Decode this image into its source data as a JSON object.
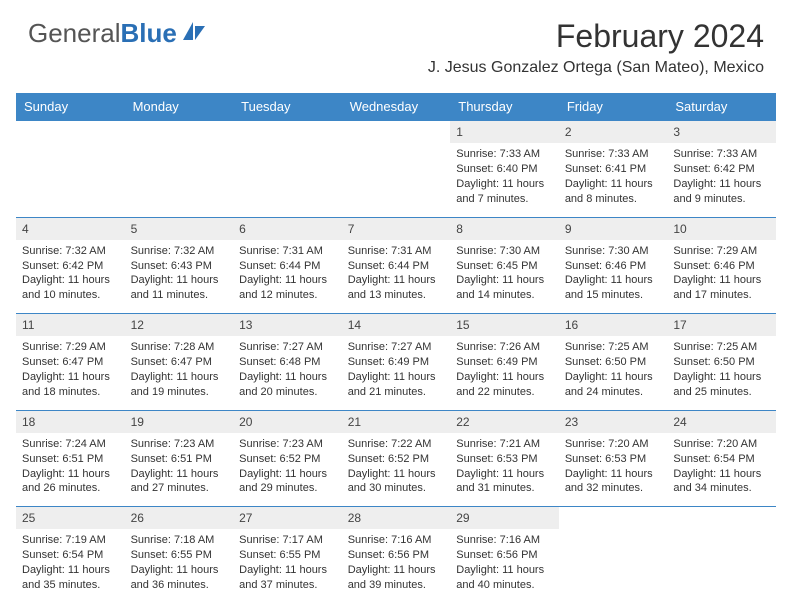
{
  "brand": {
    "part1": "General",
    "part2": "Blue"
  },
  "title": "February 2024",
  "location": "J. Jesus Gonzalez Ortega (San Mateo), Mexico",
  "colors": {
    "header_bg": "#3d86c6",
    "header_text": "#ffffff",
    "daynum_bg": "#eeeeee",
    "row_border": "#3d86c6",
    "body_text": "#333333",
    "brand_gray": "#555555",
    "brand_blue": "#2a6fb5",
    "background": "#ffffff"
  },
  "typography": {
    "title_fontsize": 32,
    "location_fontsize": 16,
    "header_fontsize": 13,
    "daynum_fontsize": 12,
    "cell_fontsize": 11,
    "logo_fontsize": 26
  },
  "layout": {
    "columns": 7,
    "rows": 5,
    "first_day_column": 4
  },
  "weekdays": [
    "Sunday",
    "Monday",
    "Tuesday",
    "Wednesday",
    "Thursday",
    "Friday",
    "Saturday"
  ],
  "weeks": [
    [
      null,
      null,
      null,
      null,
      {
        "n": "1",
        "sunrise": "Sunrise: 7:33 AM",
        "sunset": "Sunset: 6:40 PM",
        "daylight": "Daylight: 11 hours and 7 minutes."
      },
      {
        "n": "2",
        "sunrise": "Sunrise: 7:33 AM",
        "sunset": "Sunset: 6:41 PM",
        "daylight": "Daylight: 11 hours and 8 minutes."
      },
      {
        "n": "3",
        "sunrise": "Sunrise: 7:33 AM",
        "sunset": "Sunset: 6:42 PM",
        "daylight": "Daylight: 11 hours and 9 minutes."
      }
    ],
    [
      {
        "n": "4",
        "sunrise": "Sunrise: 7:32 AM",
        "sunset": "Sunset: 6:42 PM",
        "daylight": "Daylight: 11 hours and 10 minutes."
      },
      {
        "n": "5",
        "sunrise": "Sunrise: 7:32 AM",
        "sunset": "Sunset: 6:43 PM",
        "daylight": "Daylight: 11 hours and 11 minutes."
      },
      {
        "n": "6",
        "sunrise": "Sunrise: 7:31 AM",
        "sunset": "Sunset: 6:44 PM",
        "daylight": "Daylight: 11 hours and 12 minutes."
      },
      {
        "n": "7",
        "sunrise": "Sunrise: 7:31 AM",
        "sunset": "Sunset: 6:44 PM",
        "daylight": "Daylight: 11 hours and 13 minutes."
      },
      {
        "n": "8",
        "sunrise": "Sunrise: 7:30 AM",
        "sunset": "Sunset: 6:45 PM",
        "daylight": "Daylight: 11 hours and 14 minutes."
      },
      {
        "n": "9",
        "sunrise": "Sunrise: 7:30 AM",
        "sunset": "Sunset: 6:46 PM",
        "daylight": "Daylight: 11 hours and 15 minutes."
      },
      {
        "n": "10",
        "sunrise": "Sunrise: 7:29 AM",
        "sunset": "Sunset: 6:46 PM",
        "daylight": "Daylight: 11 hours and 17 minutes."
      }
    ],
    [
      {
        "n": "11",
        "sunrise": "Sunrise: 7:29 AM",
        "sunset": "Sunset: 6:47 PM",
        "daylight": "Daylight: 11 hours and 18 minutes."
      },
      {
        "n": "12",
        "sunrise": "Sunrise: 7:28 AM",
        "sunset": "Sunset: 6:47 PM",
        "daylight": "Daylight: 11 hours and 19 minutes."
      },
      {
        "n": "13",
        "sunrise": "Sunrise: 7:27 AM",
        "sunset": "Sunset: 6:48 PM",
        "daylight": "Daylight: 11 hours and 20 minutes."
      },
      {
        "n": "14",
        "sunrise": "Sunrise: 7:27 AM",
        "sunset": "Sunset: 6:49 PM",
        "daylight": "Daylight: 11 hours and 21 minutes."
      },
      {
        "n": "15",
        "sunrise": "Sunrise: 7:26 AM",
        "sunset": "Sunset: 6:49 PM",
        "daylight": "Daylight: 11 hours and 22 minutes."
      },
      {
        "n": "16",
        "sunrise": "Sunrise: 7:25 AM",
        "sunset": "Sunset: 6:50 PM",
        "daylight": "Daylight: 11 hours and 24 minutes."
      },
      {
        "n": "17",
        "sunrise": "Sunrise: 7:25 AM",
        "sunset": "Sunset: 6:50 PM",
        "daylight": "Daylight: 11 hours and 25 minutes."
      }
    ],
    [
      {
        "n": "18",
        "sunrise": "Sunrise: 7:24 AM",
        "sunset": "Sunset: 6:51 PM",
        "daylight": "Daylight: 11 hours and 26 minutes."
      },
      {
        "n": "19",
        "sunrise": "Sunrise: 7:23 AM",
        "sunset": "Sunset: 6:51 PM",
        "daylight": "Daylight: 11 hours and 27 minutes."
      },
      {
        "n": "20",
        "sunrise": "Sunrise: 7:23 AM",
        "sunset": "Sunset: 6:52 PM",
        "daylight": "Daylight: 11 hours and 29 minutes."
      },
      {
        "n": "21",
        "sunrise": "Sunrise: 7:22 AM",
        "sunset": "Sunset: 6:52 PM",
        "daylight": "Daylight: 11 hours and 30 minutes."
      },
      {
        "n": "22",
        "sunrise": "Sunrise: 7:21 AM",
        "sunset": "Sunset: 6:53 PM",
        "daylight": "Daylight: 11 hours and 31 minutes."
      },
      {
        "n": "23",
        "sunrise": "Sunrise: 7:20 AM",
        "sunset": "Sunset: 6:53 PM",
        "daylight": "Daylight: 11 hours and 32 minutes."
      },
      {
        "n": "24",
        "sunrise": "Sunrise: 7:20 AM",
        "sunset": "Sunset: 6:54 PM",
        "daylight": "Daylight: 11 hours and 34 minutes."
      }
    ],
    [
      {
        "n": "25",
        "sunrise": "Sunrise: 7:19 AM",
        "sunset": "Sunset: 6:54 PM",
        "daylight": "Daylight: 11 hours and 35 minutes."
      },
      {
        "n": "26",
        "sunrise": "Sunrise: 7:18 AM",
        "sunset": "Sunset: 6:55 PM",
        "daylight": "Daylight: 11 hours and 36 minutes."
      },
      {
        "n": "27",
        "sunrise": "Sunrise: 7:17 AM",
        "sunset": "Sunset: 6:55 PM",
        "daylight": "Daylight: 11 hours and 37 minutes."
      },
      {
        "n": "28",
        "sunrise": "Sunrise: 7:16 AM",
        "sunset": "Sunset: 6:56 PM",
        "daylight": "Daylight: 11 hours and 39 minutes."
      },
      {
        "n": "29",
        "sunrise": "Sunrise: 7:16 AM",
        "sunset": "Sunset: 6:56 PM",
        "daylight": "Daylight: 11 hours and 40 minutes."
      },
      null,
      null
    ]
  ]
}
